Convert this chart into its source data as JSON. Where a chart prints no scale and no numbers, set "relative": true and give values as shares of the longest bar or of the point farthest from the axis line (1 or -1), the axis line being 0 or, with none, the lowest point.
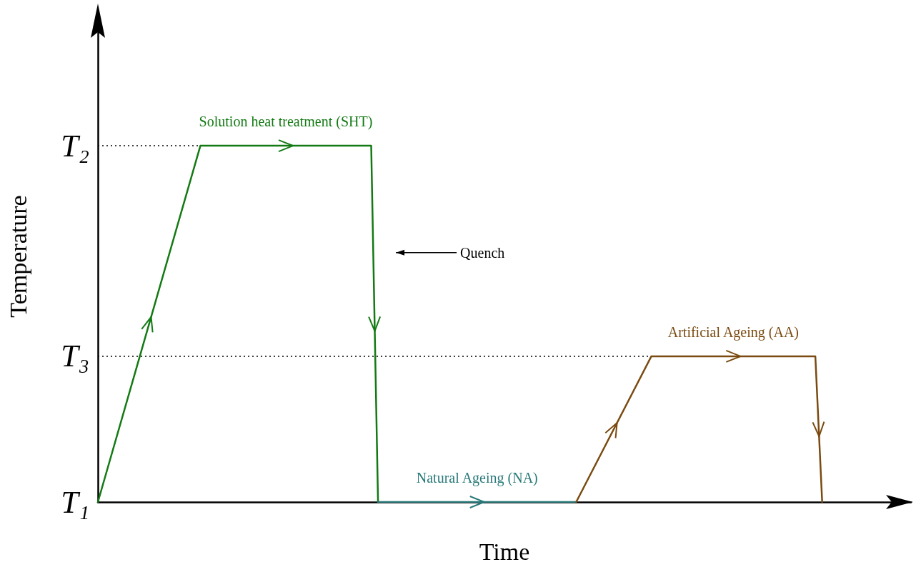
{
  "chart_data": {
    "type": "line",
    "xlabel": "Time",
    "ylabel": "Temperature",
    "relative": true,
    "grid": false,
    "legend": false,
    "marker": "none",
    "line_style": "solid",
    "categories": [
      null,
      null,
      null,
      null,
      null,
      null,
      null,
      null,
      null,
      null,
      null,
      null,
      null,
      null,
      null,
      null,
      null,
      null,
      null,
      null,
      null,
      null,
      null,
      null,
      null,
      null,
      null,
      null,
      null,
      null,
      null,
      null,
      null,
      null,
      null,
      null,
      null,
      null,
      null,
      null,
      null,
      null,
      null,
      null,
      null,
      null,
      null,
      null,
      null,
      null,
      null,
      null,
      null,
      null,
      null,
      null,
      null,
      null,
      null,
      null,
      null,
      null,
      null,
      null,
      null,
      null,
      null,
      null,
      null,
      null,
      null,
      null,
      null,
      null,
      null,
      null,
      null,
      null,
      null,
      null,
      null,
      null,
      null,
      null,
      null,
      null,
      null,
      null,
      null,
      null,
      null,
      null,
      null,
      null,
      null,
      null,
      null,
      null,
      null,
      null,
      null,
      null,
      null,
      null,
      null,
      null,
      null,
      null,
      null,
      null,
      null,
      null,
      null,
      null,
      null,
      null,
      null,
      null,
      null,
      null
    ],
    "series": [
      {
        "name": "Solution heat treatment (SHT)",
        "color": "#137a13",
        "values": [
          0,
          null,
          null,
          null,
          null,
          null,
          null,
          null,
          null,
          null,
          null,
          null,
          null,
          null,
          null,
          1,
          null,
          null,
          null,
          null,
          null,
          null,
          null,
          null,
          null,
          null,
          null,
          null,
          null,
          null,
          null,
          null,
          null,
          null,
          null,
          null,
          null,
          null,
          null,
          null,
          1,
          0,
          null,
          null,
          null,
          null,
          null,
          null,
          null,
          null,
          null,
          null,
          null,
          null,
          null,
          null,
          null,
          null,
          null,
          null,
          null,
          null,
          null,
          null,
          null,
          null,
          null,
          null,
          null,
          null,
          null,
          null,
          null,
          null,
          null,
          null,
          null,
          null,
          null,
          null,
          null,
          null,
          null,
          null,
          null,
          null,
          null,
          null,
          null,
          null,
          null,
          null,
          null,
          null,
          null,
          null,
          null,
          null,
          null,
          null,
          null,
          null,
          null,
          null,
          null,
          null,
          null,
          null,
          null,
          null,
          null,
          null,
          null,
          null,
          null,
          null,
          null,
          null,
          null,
          null
        ]
      },
      {
        "name": "Natural Ageing (NA)",
        "color": "#2a7a7a",
        "values": [
          null,
          null,
          null,
          null,
          null,
          null,
          null,
          null,
          null,
          null,
          null,
          null,
          null,
          null,
          null,
          null,
          null,
          null,
          null,
          null,
          null,
          null,
          null,
          null,
          null,
          null,
          null,
          null,
          null,
          null,
          null,
          null,
          null,
          null,
          null,
          null,
          null,
          null,
          null,
          null,
          null,
          0,
          null,
          null,
          null,
          null,
          null,
          null,
          null,
          null,
          null,
          null,
          null,
          null,
          null,
          null,
          null,
          null,
          null,
          null,
          null,
          null,
          null,
          null,
          null,
          null,
          null,
          null,
          null,
          null,
          0,
          null,
          null,
          null,
          null,
          null,
          null,
          null,
          null,
          null,
          null,
          null,
          null,
          null,
          null,
          null,
          null,
          null,
          null,
          null,
          null,
          null,
          null,
          null,
          null,
          null,
          null,
          null,
          null,
          null,
          null,
          null,
          null,
          null,
          null,
          null,
          null,
          null,
          null,
          null,
          null,
          null,
          null,
          null,
          null,
          null,
          null,
          null,
          null,
          null
        ]
      },
      {
        "name": "Artificial Ageing (AA)",
        "color": "#7a4a10",
        "values": [
          null,
          null,
          null,
          null,
          null,
          null,
          null,
          null,
          null,
          null,
          null,
          null,
          null,
          null,
          null,
          null,
          null,
          null,
          null,
          null,
          null,
          null,
          null,
          null,
          null,
          null,
          null,
          null,
          null,
          null,
          null,
          null,
          null,
          null,
          null,
          null,
          null,
          null,
          null,
          null,
          null,
          null,
          null,
          null,
          null,
          null,
          null,
          null,
          null,
          null,
          null,
          null,
          null,
          null,
          null,
          null,
          null,
          null,
          null,
          null,
          null,
          null,
          null,
          null,
          null,
          null,
          null,
          null,
          null,
          null,
          0,
          null,
          null,
          null,
          null,
          null,
          null,
          null,
          null,
          null,
          null,
          0.409,
          null,
          null,
          null,
          null,
          null,
          null,
          null,
          null,
          null,
          null,
          null,
          null,
          null,
          null,
          null,
          null,
          null,
          null,
          null,
          null,
          null,
          null,
          null,
          0.409,
          0,
          null,
          null,
          null,
          null,
          null,
          null,
          null,
          null,
          null,
          null,
          null,
          null,
          null
        ]
      }
    ],
    "ref_lines": [
      {
        "axis": "y",
        "value": 1,
        "label": "T₂",
        "line_style": "dotted",
        "color": "#000000"
      },
      {
        "axis": "y",
        "value": 0.409,
        "label": "T₃",
        "line_style": "dotted",
        "color": "#000000"
      },
      {
        "axis": "y",
        "value": 0,
        "label": "T₁",
        "line_style": "solid",
        "color": "#000000"
      }
    ],
    "annotations": [
      "Quench"
    ]
  }
}
